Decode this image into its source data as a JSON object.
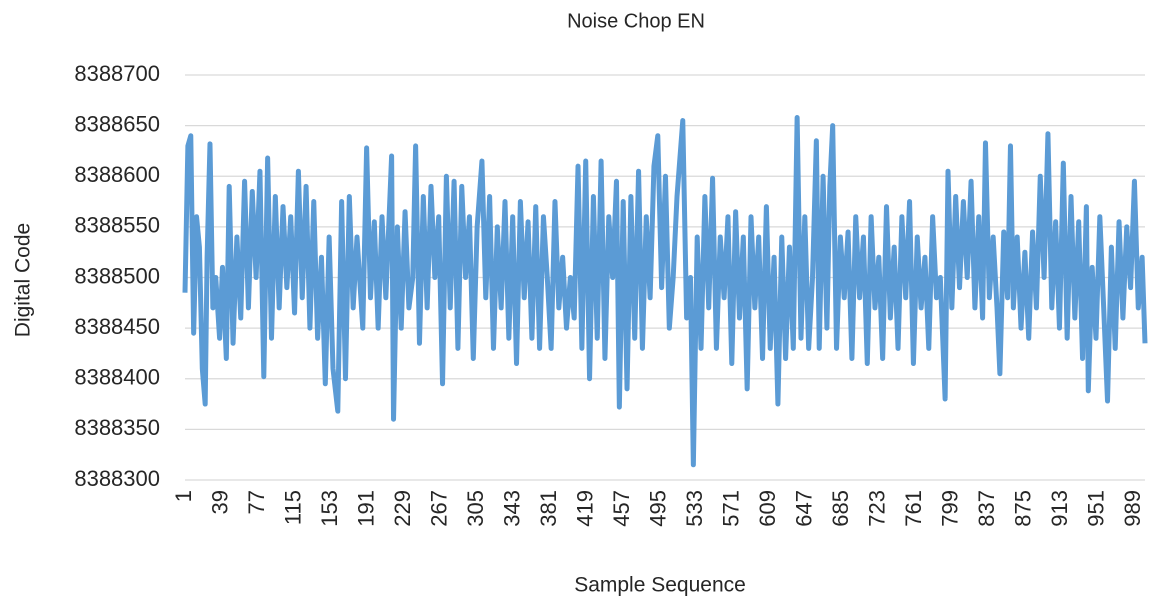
{
  "chart_data": {
    "type": "line",
    "title": "Noise Chop EN",
    "x_label": "Sample Sequence",
    "y_label": "Digital Code",
    "color": "#5b9bd5",
    "grid": true,
    "xlim": [
      1,
      1000
    ],
    "xticks": [
      1,
      39,
      77,
      115,
      153,
      191,
      229,
      267,
      305,
      343,
      381,
      419,
      457,
      495,
      533,
      571,
      609,
      647,
      685,
      723,
      761,
      799,
      837,
      875,
      913,
      951,
      989
    ],
    "ylim": [
      8388300,
      8388700
    ],
    "yticks": [
      8388300,
      8388350,
      8388400,
      8388450,
      8388500,
      8388550,
      8388600,
      8388650,
      8388700
    ],
    "x": [
      1,
      4,
      7,
      10,
      13,
      16,
      19,
      22,
      24,
      27,
      30,
      33,
      37,
      40,
      44,
      47,
      51,
      55,
      59,
      63,
      67,
      71,
      75,
      79,
      83,
      87,
      91,
      95,
      99,
      103,
      107,
      111,
      115,
      119,
      123,
      127,
      131,
      135,
      139,
      143,
      147,
      151,
      155,
      160,
      164,
      168,
      172,
      176,
      180,
      186,
      190,
      194,
      198,
      202,
      206,
      210,
      216,
      218,
      222,
      226,
      230,
      234,
      238,
      241,
      245,
      249,
      253,
      257,
      261,
      265,
      269,
      273,
      277,
      281,
      285,
      289,
      293,
      297,
      301,
      305,
      310,
      314,
      318,
      322,
      326,
      330,
      334,
      338,
      342,
      346,
      350,
      354,
      358,
      362,
      366,
      370,
      374,
      378,
      382,
      386,
      390,
      394,
      398,
      402,
      406,
      410,
      414,
      418,
      422,
      426,
      430,
      434,
      438,
      442,
      446,
      450,
      453,
      457,
      461,
      465,
      469,
      473,
      477,
      481,
      485,
      489,
      493,
      497,
      501,
      505,
      509,
      513,
      519,
      523,
      527,
      530,
      534,
      538,
      542,
      546,
      550,
      554,
      558,
      562,
      566,
      570,
      574,
      578,
      582,
      586,
      590,
      594,
      598,
      602,
      606,
      610,
      614,
      618,
      622,
      626,
      630,
      634,
      638,
      642,
      646,
      650,
      654,
      658,
      661,
      665,
      669,
      672,
      675,
      679,
      683,
      687,
      691,
      695,
      699,
      703,
      707,
      711,
      715,
      719,
      723,
      727,
      731,
      735,
      739,
      743,
      747,
      751,
      755,
      759,
      763,
      767,
      771,
      775,
      779,
      783,
      787,
      792,
      795,
      799,
      803,
      807,
      811,
      815,
      819,
      823,
      827,
      831,
      834,
      838,
      842,
      846,
      849,
      853,
      857,
      860,
      863,
      867,
      871,
      875,
      879,
      883,
      887,
      891,
      895,
      899,
      903,
      907,
      911,
      915,
      919,
      923,
      927,
      931,
      935,
      939,
      941,
      945,
      949,
      953,
      957,
      961,
      965,
      969,
      973,
      977,
      981,
      985,
      989,
      993,
      997,
      1000
    ],
    "values": [
      8388485,
      8388630,
      8388640,
      8388445,
      8388560,
      8388530,
      8388410,
      8388375,
      8388520,
      8388632,
      8388470,
      8388500,
      8388440,
      8388510,
      8388420,
      8388590,
      8388435,
      8388540,
      8388460,
      8388595,
      8388470,
      8388585,
      8388500,
      8388605,
      8388402,
      8388618,
      8388440,
      8388580,
      8388470,
      8388570,
      8388490,
      8388560,
      8388465,
      8388605,
      8388480,
      8388590,
      8388450,
      8388575,
      8388440,
      8388520,
      8388395,
      8388540,
      8388410,
      8388368,
      8388575,
      8388400,
      8388580,
      8388470,
      8388540,
      8388450,
      8388628,
      8388480,
      8388555,
      8388450,
      8388560,
      8388480,
      8388620,
      8388360,
      8388550,
      8388450,
      8388565,
      8388470,
      8388500,
      8388630,
      8388435,
      8388580,
      8388470,
      8388590,
      8388500,
      8388560,
      8388395,
      8388600,
      8388470,
      8388595,
      8388430,
      8388590,
      8388500,
      8388560,
      8388420,
      8388550,
      8388615,
      8388480,
      8388580,
      8388430,
      8388550,
      8388470,
      8388575,
      8388440,
      8388560,
      8388415,
      8388575,
      8388480,
      8388555,
      8388440,
      8388570,
      8388430,
      8388560,
      8388500,
      8388430,
      8388575,
      8388470,
      8388520,
      8388450,
      8388500,
      8388460,
      8388610,
      8388430,
      8388615,
      8388400,
      8388580,
      8388440,
      8388615,
      8388420,
      8388560,
      8388500,
      8388595,
      8388372,
      8388575,
      8388390,
      8388580,
      8388440,
      8388605,
      8388430,
      8388560,
      8388480,
      8388610,
      8388640,
      8388490,
      8388600,
      8388450,
      8388500,
      8388580,
      8388655,
      8388460,
      8388500,
      8388315,
      8388540,
      8388430,
      8388580,
      8388470,
      8388598,
      8388430,
      8388540,
      8388480,
      8388560,
      8388415,
      8388565,
      8388460,
      8388540,
      8388390,
      8388560,
      8388470,
      8388540,
      8388420,
      8388570,
      8388430,
      8388520,
      8388375,
      8388540,
      8388420,
      8388530,
      8388430,
      8388658,
      8388440,
      8388560,
      8388430,
      8388500,
      8388635,
      8388430,
      8388600,
      8388450,
      8388590,
      8388650,
      8388430,
      8388540,
      8388480,
      8388545,
      8388420,
      8388560,
      8388480,
      8388540,
      8388415,
      8388560,
      8388470,
      8388520,
      8388420,
      8388570,
      8388460,
      8388530,
      8388430,
      8388560,
      8388480,
      8388575,
      8388415,
      8388540,
      8388470,
      8388520,
      8388430,
      8388560,
      8388480,
      8388500,
      8388380,
      8388605,
      8388470,
      8388580,
      8388490,
      8388575,
      8388500,
      8388595,
      8388470,
      8388560,
      8388460,
      8388633,
      8388480,
      8388540,
      8388470,
      8388405,
      8388545,
      8388480,
      8388630,
      8388470,
      8388540,
      8388450,
      8388525,
      8388440,
      8388545,
      8388470,
      8388600,
      8388500,
      8388642,
      8388470,
      8388555,
      8388450,
      8388613,
      8388440,
      8388580,
      8388460,
      8388555,
      8388420,
      8388570,
      8388388,
      8388510,
      8388440,
      8388560,
      8388470,
      8388378,
      8388530,
      8388430,
      8388555,
      8388460,
      8388550,
      8388490,
      8388595,
      8388470,
      8388520,
      8388435
    ]
  }
}
